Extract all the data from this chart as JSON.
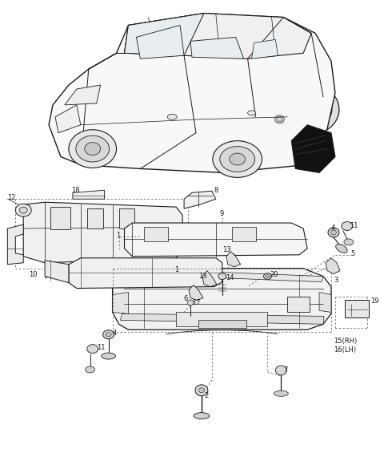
{
  "bg_color": "#ffffff",
  "fig_width": 4.8,
  "fig_height": 5.7,
  "dpi": 100,
  "line_color": "#1a1a1a",
  "dash_color": "#555555"
}
